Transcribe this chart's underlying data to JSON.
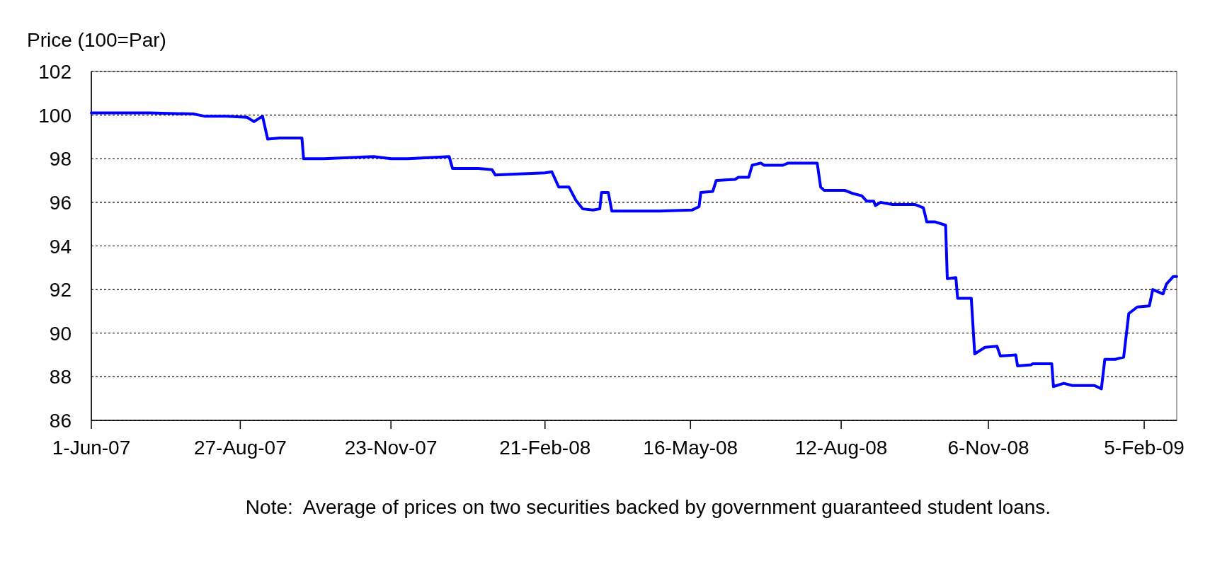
{
  "chart_data": {
    "type": "line",
    "ylabel": "Price (100=Par)",
    "annotations": [
      "Note:  Average of prices on two securities backed by government guaranteed student loans."
    ],
    "xlim": [
      "2007-06-01",
      "2009-02-24"
    ],
    "ylim": [
      86,
      102
    ],
    "yticks": [
      86,
      88,
      90,
      92,
      94,
      96,
      98,
      100,
      102
    ],
    "xticks": [
      {
        "value": "2007-06-01",
        "label": "1-Jun-07"
      },
      {
        "value": "2007-08-27",
        "label": "27-Aug-07"
      },
      {
        "value": "2007-11-23",
        "label": "23-Nov-07"
      },
      {
        "value": "2008-02-21",
        "label": "21-Feb-08"
      },
      {
        "value": "2008-05-16",
        "label": "16-May-08"
      },
      {
        "value": "2008-08-12",
        "label": "12-Aug-08"
      },
      {
        "value": "2008-11-06",
        "label": "6-Nov-08"
      },
      {
        "value": "2009-02-05",
        "label": "5-Feb-09"
      }
    ],
    "grid": "y",
    "line_style": "solid",
    "marker": "none",
    "series": [
      {
        "color": "#0000ff",
        "x": [
          "2007-06-01",
          "2007-07-05",
          "2007-07-31",
          "2007-08-06",
          "2007-08-19",
          "2007-08-31",
          "2007-09-04",
          "2007-09-09",
          "2007-09-12",
          "2007-09-19",
          "2007-10-02",
          "2007-10-03",
          "2007-10-15",
          "2007-11-13",
          "2007-11-23",
          "2007-12-03",
          "2007-12-27",
          "2007-12-29",
          "2008-01-13",
          "2008-01-21",
          "2008-01-23",
          "2008-02-06",
          "2008-02-21",
          "2008-02-25",
          "2008-02-29",
          "2008-03-06",
          "2008-03-10",
          "2008-03-14",
          "2008-03-20",
          "2008-03-24",
          "2008-03-25",
          "2008-03-29",
          "2008-03-31",
          "2008-04-28",
          "2008-05-17",
          "2008-05-21",
          "2008-05-22",
          "2008-05-29",
          "2008-05-31",
          "2008-06-11",
          "2008-06-13",
          "2008-06-19",
          "2008-06-21",
          "2008-06-26",
          "2008-06-28",
          "2008-07-04",
          "2008-07-09",
          "2008-07-12",
          "2008-07-29",
          "2008-07-31",
          "2008-08-02",
          "2008-08-14",
          "2008-08-19",
          "2008-08-24",
          "2008-08-27",
          "2008-08-31",
          "2008-09-01",
          "2008-09-04",
          "2008-09-11",
          "2008-09-24",
          "2008-09-29",
          "2008-10-01",
          "2008-10-06",
          "2008-10-12",
          "2008-10-13",
          "2008-10-18",
          "2008-10-19",
          "2008-10-27",
          "2008-10-29",
          "2008-11-04",
          "2008-11-11",
          "2008-11-13",
          "2008-11-22",
          "2008-11-23",
          "2008-12-01",
          "2008-12-02",
          "2008-12-13",
          "2008-12-14",
          "2008-12-20",
          "2008-12-25",
          "2009-01-07",
          "2009-01-11",
          "2009-01-13",
          "2009-01-19",
          "2009-01-24",
          "2009-01-27",
          "2009-02-01",
          "2009-02-08",
          "2009-02-10",
          "2009-02-16",
          "2009-02-18",
          "2009-02-22",
          "2009-02-24"
        ],
        "values": [
          100.1,
          100.1,
          100.05,
          99.95,
          99.95,
          99.9,
          99.7,
          99.95,
          98.9,
          98.95,
          98.95,
          98.0,
          98.0,
          98.1,
          98.0,
          98.0,
          98.1,
          97.55,
          97.55,
          97.5,
          97.25,
          97.3,
          97.35,
          97.4,
          96.7,
          96.7,
          96.1,
          95.7,
          95.65,
          95.7,
          96.45,
          96.45,
          95.6,
          95.6,
          95.65,
          95.8,
          96.45,
          96.5,
          97.0,
          97.05,
          97.15,
          97.15,
          97.7,
          97.8,
          97.7,
          97.7,
          97.7,
          97.8,
          97.8,
          96.7,
          96.55,
          96.55,
          96.4,
          96.3,
          96.05,
          96.05,
          95.85,
          96.0,
          95.9,
          95.9,
          95.75,
          95.1,
          95.1,
          94.95,
          92.5,
          92.55,
          91.6,
          91.6,
          89.05,
          89.35,
          89.4,
          88.95,
          89.0,
          88.5,
          88.55,
          88.6,
          88.6,
          87.55,
          87.7,
          87.6,
          87.6,
          87.45,
          88.8,
          88.8,
          88.9,
          90.9,
          91.2,
          91.25,
          92.0,
          91.8,
          92.25,
          92.6,
          92.6
        ]
      }
    ]
  }
}
